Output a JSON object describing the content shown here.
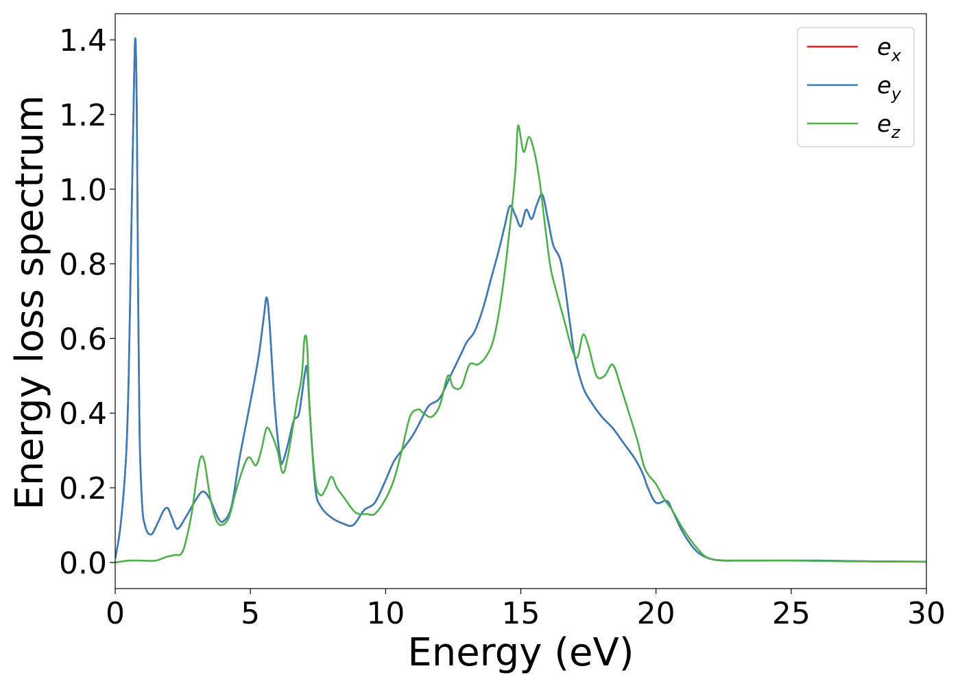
{
  "chart_data": {
    "type": "line",
    "title": "",
    "xlabel": "Energy (eV)",
    "ylabel": "Energy loss spectrum",
    "xlim": [
      0,
      30
    ],
    "ylim": [
      -0.07,
      1.47
    ],
    "xticks": [
      0,
      5,
      10,
      15,
      20,
      25,
      30
    ],
    "xtick_labels": [
      "0",
      "5",
      "10",
      "15",
      "20",
      "25",
      "30"
    ],
    "yticks": [
      0.0,
      0.2,
      0.4,
      0.6,
      0.8,
      1.0,
      1.2,
      1.4
    ],
    "ytick_labels": [
      "0.0",
      "0.2",
      "0.4",
      "0.6",
      "0.8",
      "1.0",
      "1.2",
      "1.4"
    ],
    "grid": false,
    "legend_position": "top-right",
    "series": [
      {
        "key": "ex",
        "legend_base": "e",
        "legend_sub": "x",
        "color": "#e41a1c",
        "x": [
          0,
          0.2,
          0.4,
          0.5,
          0.6,
          0.7,
          0.75,
          0.8,
          0.85,
          0.9,
          1.0,
          1.1,
          1.2,
          1.3,
          1.4,
          1.6,
          1.8,
          1.95,
          2.1,
          2.3,
          2.6,
          3.0,
          3.25,
          3.5,
          3.8,
          4.0,
          4.3,
          4.6,
          5.0,
          5.3,
          5.5,
          5.6,
          5.7,
          5.9,
          6.1,
          6.2,
          6.4,
          6.6,
          6.8,
          7.0,
          7.1,
          7.2,
          7.4,
          7.6,
          8.0,
          8.4,
          8.8,
          9.2,
          9.6,
          10.0,
          10.3,
          10.6,
          11.0,
          11.3,
          11.6,
          12.0,
          12.4,
          12.8,
          13.0,
          13.3,
          13.6,
          13.9,
          14.2,
          14.4,
          14.6,
          14.8,
          15.0,
          15.2,
          15.4,
          15.6,
          15.8,
          16.0,
          16.2,
          16.5,
          16.8,
          17.0,
          17.3,
          17.6,
          18.0,
          18.4,
          18.8,
          19.2,
          19.5,
          19.7,
          20.0,
          20.4,
          20.6,
          21.0,
          21.5,
          22.0,
          22.5,
          23.0,
          25.0,
          26.0,
          28.0,
          30.0
        ],
        "y": [
          0.01,
          0.1,
          0.28,
          0.5,
          0.9,
          1.3,
          1.4,
          1.2,
          0.7,
          0.35,
          0.15,
          0.1,
          0.08,
          0.075,
          0.08,
          0.11,
          0.14,
          0.145,
          0.12,
          0.09,
          0.12,
          0.17,
          0.19,
          0.17,
          0.12,
          0.11,
          0.15,
          0.28,
          0.43,
          0.55,
          0.66,
          0.71,
          0.65,
          0.42,
          0.28,
          0.27,
          0.32,
          0.38,
          0.4,
          0.5,
          0.52,
          0.4,
          0.2,
          0.15,
          0.12,
          0.105,
          0.1,
          0.14,
          0.16,
          0.22,
          0.27,
          0.3,
          0.34,
          0.38,
          0.42,
          0.44,
          0.5,
          0.56,
          0.59,
          0.62,
          0.68,
          0.76,
          0.84,
          0.9,
          0.955,
          0.93,
          0.9,
          0.945,
          0.92,
          0.96,
          0.985,
          0.92,
          0.85,
          0.8,
          0.65,
          0.55,
          0.47,
          0.43,
          0.39,
          0.36,
          0.32,
          0.28,
          0.24,
          0.2,
          0.16,
          0.165,
          0.14,
          0.08,
          0.03,
          0.01,
          0.005,
          0.005,
          0.005,
          0.005,
          0.003,
          0.002
        ]
      },
      {
        "key": "ey",
        "legend_base": "e",
        "legend_sub": "y",
        "color": "#377eb8",
        "x": [
          0,
          0.2,
          0.4,
          0.5,
          0.6,
          0.7,
          0.75,
          0.8,
          0.85,
          0.9,
          1.0,
          1.1,
          1.2,
          1.3,
          1.4,
          1.6,
          1.8,
          1.95,
          2.1,
          2.3,
          2.6,
          3.0,
          3.25,
          3.5,
          3.8,
          4.0,
          4.3,
          4.6,
          5.0,
          5.3,
          5.5,
          5.6,
          5.7,
          5.9,
          6.1,
          6.2,
          6.4,
          6.6,
          6.8,
          7.0,
          7.1,
          7.2,
          7.4,
          7.6,
          8.0,
          8.4,
          8.8,
          9.2,
          9.6,
          10.0,
          10.3,
          10.6,
          11.0,
          11.3,
          11.6,
          12.0,
          12.4,
          12.8,
          13.0,
          13.3,
          13.6,
          13.9,
          14.2,
          14.4,
          14.6,
          14.8,
          15.0,
          15.2,
          15.4,
          15.6,
          15.8,
          16.0,
          16.2,
          16.5,
          16.8,
          17.0,
          17.3,
          17.6,
          18.0,
          18.4,
          18.8,
          19.2,
          19.5,
          19.7,
          20.0,
          20.4,
          20.6,
          21.0,
          21.5,
          22.0,
          22.5,
          23.0,
          25.0,
          26.0,
          28.0,
          30.0
        ],
        "y": [
          0.01,
          0.1,
          0.28,
          0.5,
          0.9,
          1.3,
          1.4,
          1.2,
          0.7,
          0.35,
          0.15,
          0.1,
          0.08,
          0.075,
          0.08,
          0.11,
          0.14,
          0.145,
          0.12,
          0.09,
          0.12,
          0.17,
          0.19,
          0.17,
          0.12,
          0.11,
          0.15,
          0.28,
          0.43,
          0.55,
          0.66,
          0.71,
          0.65,
          0.42,
          0.28,
          0.27,
          0.32,
          0.38,
          0.4,
          0.5,
          0.52,
          0.4,
          0.2,
          0.15,
          0.12,
          0.105,
          0.1,
          0.14,
          0.16,
          0.22,
          0.27,
          0.3,
          0.34,
          0.38,
          0.42,
          0.44,
          0.5,
          0.56,
          0.59,
          0.62,
          0.68,
          0.76,
          0.84,
          0.9,
          0.955,
          0.93,
          0.9,
          0.945,
          0.92,
          0.96,
          0.985,
          0.92,
          0.85,
          0.8,
          0.65,
          0.55,
          0.47,
          0.43,
          0.39,
          0.36,
          0.32,
          0.28,
          0.24,
          0.2,
          0.16,
          0.165,
          0.14,
          0.08,
          0.03,
          0.01,
          0.005,
          0.005,
          0.005,
          0.005,
          0.003,
          0.002
        ]
      },
      {
        "key": "ez",
        "legend_base": "e",
        "legend_sub": "z",
        "color": "#4daf4a",
        "x": [
          0,
          0.5,
          1.0,
          1.5,
          1.9,
          2.2,
          2.5,
          2.8,
          3.0,
          3.15,
          3.3,
          3.5,
          3.7,
          3.9,
          4.2,
          4.5,
          4.9,
          5.2,
          5.4,
          5.6,
          5.8,
          6.0,
          6.2,
          6.4,
          6.7,
          6.9,
          7.0,
          7.1,
          7.2,
          7.4,
          7.6,
          7.8,
          8.0,
          8.2,
          8.5,
          8.8,
          9.0,
          9.3,
          9.6,
          10.0,
          10.3,
          10.6,
          10.9,
          11.2,
          11.4,
          11.7,
          12.0,
          12.3,
          12.5,
          12.8,
          13.1,
          13.4,
          13.7,
          14.0,
          14.3,
          14.6,
          14.8,
          14.9,
          15.1,
          15.3,
          15.5,
          15.7,
          15.9,
          16.1,
          16.3,
          16.6,
          16.9,
          17.1,
          17.3,
          17.5,
          17.8,
          18.1,
          18.4,
          18.7,
          19.0,
          19.3,
          19.6,
          20.0,
          20.3,
          20.6,
          21.0,
          21.5,
          22.0,
          23.0,
          25.0,
          27.0,
          30.0
        ],
        "y": [
          0.0,
          0.005,
          0.005,
          0.005,
          0.015,
          0.02,
          0.03,
          0.12,
          0.22,
          0.28,
          0.27,
          0.18,
          0.12,
          0.1,
          0.12,
          0.2,
          0.28,
          0.26,
          0.3,
          0.36,
          0.34,
          0.3,
          0.24,
          0.29,
          0.42,
          0.5,
          0.6,
          0.58,
          0.4,
          0.22,
          0.18,
          0.2,
          0.23,
          0.2,
          0.17,
          0.14,
          0.13,
          0.13,
          0.13,
          0.17,
          0.22,
          0.3,
          0.39,
          0.41,
          0.4,
          0.39,
          0.42,
          0.5,
          0.47,
          0.47,
          0.53,
          0.53,
          0.55,
          0.6,
          0.72,
          0.9,
          1.05,
          1.17,
          1.1,
          1.14,
          1.1,
          1.02,
          0.9,
          0.79,
          0.73,
          0.65,
          0.57,
          0.55,
          0.61,
          0.58,
          0.5,
          0.5,
          0.53,
          0.47,
          0.4,
          0.33,
          0.25,
          0.21,
          0.17,
          0.14,
          0.09,
          0.04,
          0.01,
          0.005,
          0.005,
          0.003,
          0.002
        ]
      }
    ]
  }
}
